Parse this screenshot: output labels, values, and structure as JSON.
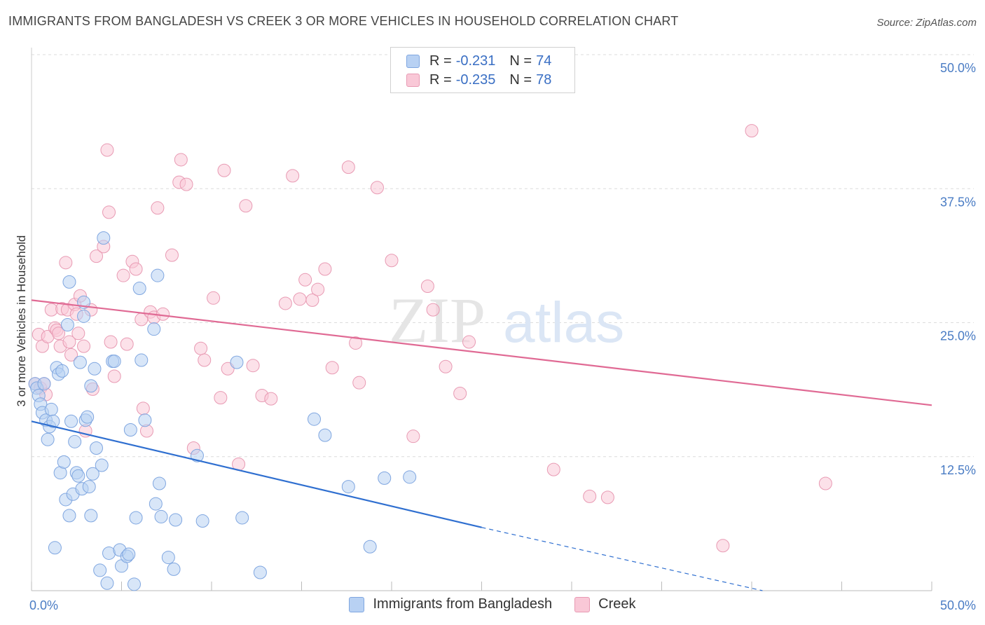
{
  "title": "IMMIGRANTS FROM BANGLADESH VS CREEK 3 OR MORE VEHICLES IN HOUSEHOLD CORRELATION CHART",
  "source": "Source: ZipAtlas.com",
  "watermark": {
    "zip": "ZIP",
    "atlas": "atlas"
  },
  "legend": {
    "rows": [
      {
        "r_label": "R =",
        "r_value": "-0.231",
        "n_label": "N =",
        "n_value": "74"
      },
      {
        "r_label": "R =",
        "r_value": "-0.235",
        "n_label": "N =",
        "n_value": "78"
      }
    ]
  },
  "colors": {
    "blue_fill": "#b8d1f3",
    "blue_stroke": "#7fa6e0",
    "blue_line": "#2f6fd0",
    "pink_fill": "#f9c8d7",
    "pink_stroke": "#e89ab3",
    "pink_line": "#e06a94",
    "tick": "#4a7cc4",
    "grid": "#dcdcdc"
  },
  "chart_data": {
    "type": "scatter",
    "title": "IMMIGRANTS FROM BANGLADESH VS CREEK 3 OR MORE VEHICLES IN HOUSEHOLD CORRELATION CHART",
    "xlabel": "",
    "ylabel": "3 or more Vehicles in Household",
    "xlim": [
      0,
      50
    ],
    "ylim": [
      0,
      50
    ],
    "x_tick_labels": [
      "0.0%",
      "50.0%"
    ],
    "y_ticks": [
      12.5,
      25.0,
      37.5,
      50.0
    ],
    "y_tick_labels": [
      "12.5%",
      "25.0%",
      "37.5%",
      "50.0%"
    ],
    "grid": true,
    "legend_position": "top-center",
    "series": [
      {
        "name": "Immigrants from Bangladesh",
        "color": "#b8d1f3",
        "trend": {
          "x0": 0,
          "y0": 15.8,
          "x1": 25,
          "y1": 5.9,
          "dashed_to_x": 40.6,
          "dashed_to_y": 0
        },
        "points": [
          [
            0.2,
            19.3
          ],
          [
            0.3,
            18.9
          ],
          [
            0.4,
            18.2
          ],
          [
            0.5,
            17.4
          ],
          [
            0.6,
            16.6
          ],
          [
            0.7,
            19.3
          ],
          [
            0.8,
            15.9
          ],
          [
            0.9,
            14.1
          ],
          [
            1.0,
            15.3
          ],
          [
            1.1,
            16.9
          ],
          [
            1.2,
            15.8
          ],
          [
            1.3,
            4.0
          ],
          [
            1.4,
            20.8
          ],
          [
            1.5,
            20.2
          ],
          [
            1.6,
            11.0
          ],
          [
            1.7,
            20.5
          ],
          [
            1.8,
            12.0
          ],
          [
            1.9,
            8.5
          ],
          [
            2.0,
            24.8
          ],
          [
            2.1,
            28.8
          ],
          [
            2.1,
            7.0
          ],
          [
            2.2,
            15.8
          ],
          [
            2.3,
            9.0
          ],
          [
            2.4,
            13.9
          ],
          [
            2.5,
            11.0
          ],
          [
            2.6,
            10.7
          ],
          [
            2.7,
            21.3
          ],
          [
            2.8,
            9.5
          ],
          [
            2.9,
            26.9
          ],
          [
            2.9,
            25.6
          ],
          [
            3.0,
            15.9
          ],
          [
            3.1,
            16.2
          ],
          [
            3.2,
            9.7
          ],
          [
            3.3,
            19.1
          ],
          [
            3.3,
            7.0
          ],
          [
            3.4,
            10.9
          ],
          [
            3.5,
            20.7
          ],
          [
            3.6,
            13.3
          ],
          [
            3.8,
            1.9
          ],
          [
            3.9,
            11.7
          ],
          [
            4.0,
            32.9
          ],
          [
            4.2,
            0.7
          ],
          [
            4.3,
            3.5
          ],
          [
            4.5,
            21.4
          ],
          [
            4.6,
            21.4
          ],
          [
            4.9,
            3.8
          ],
          [
            5.0,
            2.3
          ],
          [
            5.3,
            3.2
          ],
          [
            5.4,
            3.4
          ],
          [
            5.5,
            15.0
          ],
          [
            5.7,
            0.6
          ],
          [
            5.8,
            6.8
          ],
          [
            6.0,
            28.2
          ],
          [
            6.1,
            21.5
          ],
          [
            6.3,
            15.9
          ],
          [
            6.8,
            24.4
          ],
          [
            6.9,
            8.1
          ],
          [
            7.0,
            29.4
          ],
          [
            7.1,
            10.0
          ],
          [
            7.2,
            6.9
          ],
          [
            7.6,
            3.1
          ],
          [
            7.9,
            2.0
          ],
          [
            8.0,
            6.6
          ],
          [
            9.2,
            12.6
          ],
          [
            9.5,
            6.5
          ],
          [
            11.4,
            21.3
          ],
          [
            11.7,
            6.8
          ],
          [
            12.7,
            1.7
          ],
          [
            15.7,
            16.0
          ],
          [
            16.3,
            14.5
          ],
          [
            17.6,
            9.7
          ],
          [
            18.8,
            4.1
          ],
          [
            19.6,
            10.5
          ],
          [
            21.0,
            10.6
          ]
        ]
      },
      {
        "name": "Creek",
        "color": "#f9c8d7",
        "trend": {
          "x0": 0,
          "y0": 27.1,
          "x1": 50,
          "y1": 17.3
        },
        "points": [
          [
            0.2,
            19.3
          ],
          [
            0.4,
            23.9
          ],
          [
            0.5,
            18.9
          ],
          [
            0.6,
            22.8
          ],
          [
            0.7,
            19.3
          ],
          [
            0.8,
            18.3
          ],
          [
            0.9,
            23.7
          ],
          [
            1.1,
            26.2
          ],
          [
            1.3,
            24.5
          ],
          [
            1.4,
            24.3
          ],
          [
            1.5,
            24.0
          ],
          [
            1.6,
            22.8
          ],
          [
            1.7,
            26.3
          ],
          [
            1.9,
            30.6
          ],
          [
            2.0,
            26.2
          ],
          [
            2.1,
            23.2
          ],
          [
            2.2,
            22.0
          ],
          [
            2.4,
            26.7
          ],
          [
            2.5,
            25.8
          ],
          [
            2.6,
            24.0
          ],
          [
            2.7,
            27.5
          ],
          [
            2.9,
            22.8
          ],
          [
            3.0,
            14.9
          ],
          [
            3.3,
            26.2
          ],
          [
            3.4,
            18.8
          ],
          [
            3.6,
            31.2
          ],
          [
            4.0,
            32.1
          ],
          [
            4.2,
            41.1
          ],
          [
            4.3,
            35.3
          ],
          [
            4.4,
            23.2
          ],
          [
            4.6,
            20.0
          ],
          [
            5.1,
            29.4
          ],
          [
            5.3,
            23.0
          ],
          [
            5.6,
            30.7
          ],
          [
            5.8,
            30.0
          ],
          [
            6.1,
            25.3
          ],
          [
            6.2,
            17.0
          ],
          [
            6.4,
            14.9
          ],
          [
            6.6,
            26.0
          ],
          [
            6.8,
            25.5
          ],
          [
            7.0,
            35.7
          ],
          [
            7.3,
            25.8
          ],
          [
            7.8,
            31.3
          ],
          [
            8.2,
            38.1
          ],
          [
            8.3,
            40.2
          ],
          [
            8.6,
            37.9
          ],
          [
            9.0,
            13.3
          ],
          [
            9.4,
            22.6
          ],
          [
            9.6,
            21.5
          ],
          [
            10.1,
            27.3
          ],
          [
            10.5,
            18.0
          ],
          [
            10.7,
            39.2
          ],
          [
            10.9,
            20.7
          ],
          [
            11.5,
            11.8
          ],
          [
            11.9,
            35.9
          ],
          [
            12.3,
            21.0
          ],
          [
            12.8,
            18.2
          ],
          [
            13.3,
            17.9
          ],
          [
            14.1,
            26.8
          ],
          [
            14.5,
            38.7
          ],
          [
            14.9,
            27.2
          ],
          [
            15.2,
            29.0
          ],
          [
            15.6,
            27.1
          ],
          [
            15.9,
            28.1
          ],
          [
            16.3,
            30.0
          ],
          [
            16.7,
            20.8
          ],
          [
            17.6,
            39.5
          ],
          [
            18.0,
            23.1
          ],
          [
            18.2,
            19.4
          ],
          [
            19.2,
            37.6
          ],
          [
            20.0,
            30.8
          ],
          [
            21.2,
            14.4
          ],
          [
            22.0,
            28.4
          ],
          [
            22.3,
            26.2
          ],
          [
            23.0,
            20.9
          ],
          [
            23.8,
            18.4
          ],
          [
            24.3,
            23.2
          ],
          [
            40.0,
            42.9
          ]
        ]
      }
    ],
    "extra_points_creek": [
      [
        29.0,
        11.3
      ],
      [
        31.0,
        8.8
      ],
      [
        32.0,
        8.7
      ],
      [
        38.4,
        4.2
      ],
      [
        44.1,
        10.0
      ]
    ]
  },
  "bottom_legend": [
    {
      "label": "Immigrants from Bangladesh"
    },
    {
      "label": "Creek"
    }
  ]
}
